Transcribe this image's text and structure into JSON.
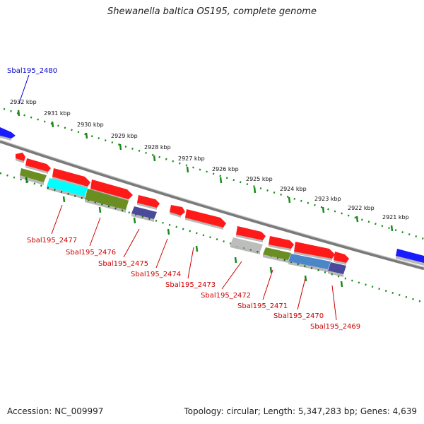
{
  "title": "Shewanella baltica OS195, complete genome",
  "footer": {
    "accession": "Accession: NC_009997",
    "stats": "Topology: circular; Length: 5,347,283 bp; Genes: 4,639"
  },
  "colors": {
    "tick": "#1a8a1a",
    "backbone": "#8a8a8a",
    "gene_red": "#ff1a1a",
    "gene_blue": "#1a1aff",
    "gene_olive": "#6b8e23",
    "gene_cyan": "#00ffff",
    "gene_slate": "#4a4a9a",
    "gene_grey": "#bdbdbd",
    "gene_steel": "#4a86c8",
    "label_red": "#cc0000",
    "label_blue": "#0000cc"
  },
  "scale": {
    "ticks": [
      "2932 kbp",
      "2931 kbp",
      "2930 kbp",
      "2929 kbp",
      "2928 kbp",
      "2927 kbp",
      "2926 kbp",
      "2925 kbp",
      "2924 kbp",
      "2923 kbp",
      "2922 kbp",
      "2921 kbp"
    ]
  },
  "gene_labels": [
    {
      "text": "Sbal195_2480",
      "color": "blue"
    },
    {
      "text": "Sbal195_2477",
      "color": "red"
    },
    {
      "text": "Sbal195_2476",
      "color": "red"
    },
    {
      "text": "Sbal195_2475",
      "color": "red"
    },
    {
      "text": "Sbal195_2474",
      "color": "red"
    },
    {
      "text": "Sbal195_2473",
      "color": "red"
    },
    {
      "text": "Sbal195_2472",
      "color": "red"
    },
    {
      "text": "Sbal195_2471",
      "color": "red"
    },
    {
      "text": "Sbal195_2470",
      "color": "red"
    },
    {
      "text": "Sbal195_2469",
      "color": "red"
    }
  ]
}
